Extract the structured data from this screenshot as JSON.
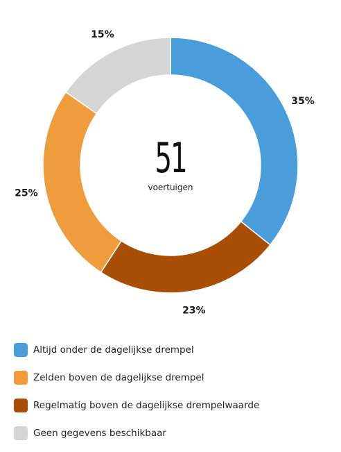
{
  "chart_data": {
    "type": "pie",
    "variant": "donut",
    "center_value": "51",
    "center_label": "voertuigen",
    "categories": [
      "Altijd onder de dagelijkse drempel",
      "Regelmatig boven de dagelijkse drempelwaarde",
      "Zelden boven de dagelijkse drempel",
      "Geen gegevens beschikbaar"
    ],
    "values": [
      35,
      23,
      25,
      15
    ],
    "value_labels": [
      "35%",
      "23%",
      "25%",
      "15%"
    ],
    "colors": [
      "#4a9ddb",
      "#a84e06",
      "#ef9c3d",
      "#d5d5d5"
    ],
    "start_angle_deg": 0,
    "direction": "clockwise",
    "legend_position": "bottom-left"
  },
  "legend": [
    {
      "label": "Altijd onder de dagelijkse drempel",
      "color": "#4a9ddb"
    },
    {
      "label": "Zelden boven de dagelijkse drempel",
      "color": "#ef9c3d"
    },
    {
      "label": "Regelmatig boven de dagelijkse drempelwaarde",
      "color": "#a84e06"
    },
    {
      "label": "Geen gegevens beschikbaar",
      "color": "#d5d5d5"
    }
  ]
}
